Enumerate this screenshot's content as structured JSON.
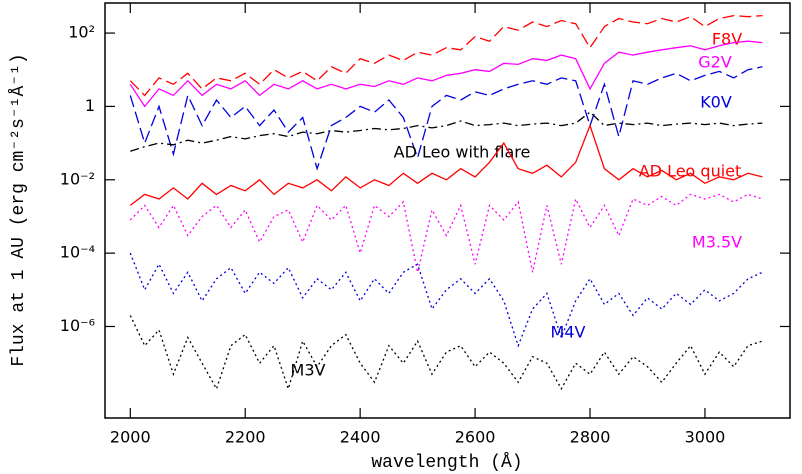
{
  "chart_data": {
    "type": "line",
    "x_label": "wavelength (Å)",
    "y_label": "Flux at 1 AU  (erg cm⁻²s⁻¹Å⁻¹)",
    "log_y": true,
    "xlim": [
      1956,
      3148
    ],
    "ylim": [
      3.2e-09,
      660
    ],
    "xticks": [
      2000,
      2200,
      2400,
      2600,
      2800,
      3000
    ],
    "yticks": [
      {
        "value": 100,
        "label": "10²"
      },
      1,
      {
        "value": 0.01,
        "label": "10⁻²"
      },
      {
        "value": 0.0001,
        "label": "10⁻⁴"
      },
      {
        "value": 1e-06,
        "label": "10⁻⁶"
      }
    ],
    "x": [
      2000,
      2025,
      2050,
      2075,
      2100,
      2125,
      2150,
      2175,
      2200,
      2225,
      2250,
      2275,
      2300,
      2325,
      2350,
      2375,
      2400,
      2425,
      2450,
      2475,
      2500,
      2525,
      2550,
      2575,
      2600,
      2625,
      2650,
      2675,
      2700,
      2725,
      2750,
      2775,
      2800,
      2825,
      2850,
      2875,
      2900,
      2925,
      2950,
      2975,
      3000,
      3025,
      3050,
      3075,
      3100
    ],
    "series": [
      {
        "name": "F8V",
        "color": "#ff0000",
        "dash": "dashed",
        "values": [
          5,
          2,
          6,
          4,
          8,
          3,
          6,
          5,
          8,
          4,
          10,
          6,
          9,
          5,
          12,
          8,
          20,
          15,
          25,
          18,
          30,
          25,
          40,
          35,
          80,
          60,
          150,
          120,
          200,
          150,
          220,
          180,
          40,
          150,
          250,
          200,
          180,
          250,
          200,
          280,
          150,
          250,
          300,
          280,
          300
        ]
      },
      {
        "name": "G2V",
        "color": "#ff00ff",
        "dash": "solid",
        "values": [
          4,
          1,
          3,
          2,
          5,
          2,
          4,
          3,
          5,
          2,
          4,
          3,
          5,
          3,
          4,
          3,
          4,
          3.5,
          5,
          4,
          6,
          5,
          7,
          8,
          10,
          9,
          15,
          14,
          20,
          18,
          25,
          20,
          3,
          15,
          30,
          25,
          30,
          35,
          40,
          45,
          35,
          45,
          55,
          60,
          55
        ]
      },
      {
        "name": "K0V",
        "color": "#0000dd",
        "dash": "dashed",
        "values": [
          2,
          0.1,
          1,
          0.05,
          2,
          0.3,
          1.5,
          0.5,
          1,
          0.3,
          0.8,
          0.2,
          0.5,
          0.02,
          0.3,
          0.5,
          1,
          0.7,
          1.5,
          0.5,
          0.04,
          1,
          2,
          1.5,
          2.5,
          2,
          3,
          4,
          5,
          4,
          6,
          5,
          0.3,
          4,
          0.15,
          5,
          4,
          6,
          8,
          5,
          7,
          9,
          6,
          10,
          12
        ]
      },
      {
        "name": "AD Leo with flare",
        "color": "#000000",
        "dash": "dashdot",
        "values": [
          0.06,
          0.08,
          0.1,
          0.09,
          0.12,
          0.1,
          0.12,
          0.15,
          0.13,
          0.16,
          0.18,
          0.15,
          0.2,
          0.18,
          0.22,
          0.2,
          0.22,
          0.25,
          0.23,
          0.25,
          0.3,
          0.26,
          0.3,
          0.4,
          0.3,
          0.32,
          0.35,
          0.3,
          0.33,
          0.35,
          0.3,
          0.35,
          0.7,
          0.3,
          0.35,
          0.32,
          0.35,
          0.3,
          0.33,
          0.35,
          0.32,
          0.35,
          0.3,
          0.33,
          0.35
        ]
      },
      {
        "name": "AD Leo quiet",
        "color": "#ff0000",
        "dash": "solid",
        "values": [
          0.002,
          0.004,
          0.003,
          0.006,
          0.003,
          0.008,
          0.004,
          0.007,
          0.005,
          0.01,
          0.004,
          0.008,
          0.006,
          0.01,
          0.005,
          0.012,
          0.006,
          0.01,
          0.007,
          0.015,
          0.008,
          0.015,
          0.01,
          0.02,
          0.012,
          0.03,
          0.1,
          0.02,
          0.015,
          0.025,
          0.012,
          0.03,
          0.3,
          0.02,
          0.01,
          0.02,
          0.012,
          0.018,
          0.01,
          0.015,
          0.008,
          0.012,
          0.01,
          0.015,
          0.012
        ]
      },
      {
        "name": "M3.5V",
        "color": "#ff00ff",
        "dash": "dotted",
        "values": [
          0.0008,
          0.002,
          0.0005,
          0.002,
          0.0003,
          0.001,
          0.002,
          0.0005,
          0.0015,
          0.0002,
          0.001,
          0.0015,
          0.0002,
          0.002,
          0.0008,
          0.002,
          0.0001,
          0.002,
          0.001,
          0.0025,
          3e-05,
          0.0015,
          0.0003,
          0.002,
          5e-05,
          0.002,
          0.0008,
          0.0025,
          3e-05,
          0.002,
          5e-05,
          0.003,
          0.0005,
          0.002,
          0.0003,
          0.003,
          0.002,
          0.0035,
          0.002,
          0.004,
          0.003,
          0.004,
          0.0025,
          0.004,
          0.003
        ]
      },
      {
        "name": "M4V",
        "color": "#0000dd",
        "dash": "dotted",
        "values": [
          0.0001,
          1e-05,
          5e-05,
          8e-06,
          3e-05,
          5e-06,
          2e-05,
          4e-05,
          8e-06,
          3e-05,
          1.5e-05,
          4e-05,
          6e-06,
          2e-05,
          1e-05,
          3e-05,
          5e-06,
          2e-05,
          8e-06,
          3e-05,
          5e-05,
          3e-06,
          1e-05,
          2e-05,
          8e-06,
          2e-05,
          5e-06,
          3e-07,
          3e-06,
          8e-06,
          5e-07,
          5e-06,
          2e-05,
          4e-06,
          8e-06,
          2e-06,
          6e-06,
          3e-06,
          8e-06,
          4e-06,
          1e-05,
          5e-06,
          8e-06,
          2e-05,
          3e-05
        ]
      },
      {
        "name": "M3V",
        "color": "#000000",
        "dash": "dotted",
        "values": [
          2e-06,
          3e-07,
          8e-07,
          5e-08,
          5e-07,
          1e-07,
          2e-08,
          3e-07,
          6e-07,
          1e-07,
          3e-07,
          2e-08,
          4e-07,
          8e-08,
          3e-07,
          6e-07,
          1e-07,
          3e-08,
          3e-07,
          1e-07,
          4e-07,
          5e-08,
          2e-07,
          3e-07,
          8e-08,
          2e-07,
          1e-07,
          3e-08,
          1.5e-07,
          1e-07,
          2e-08,
          1e-07,
          5e-08,
          2e-07,
          5e-08,
          1.5e-07,
          8e-08,
          3e-08,
          1e-07,
          3e-07,
          5e-08,
          2e-07,
          8e-08,
          3e-07,
          4e-07
        ]
      }
    ]
  }
}
